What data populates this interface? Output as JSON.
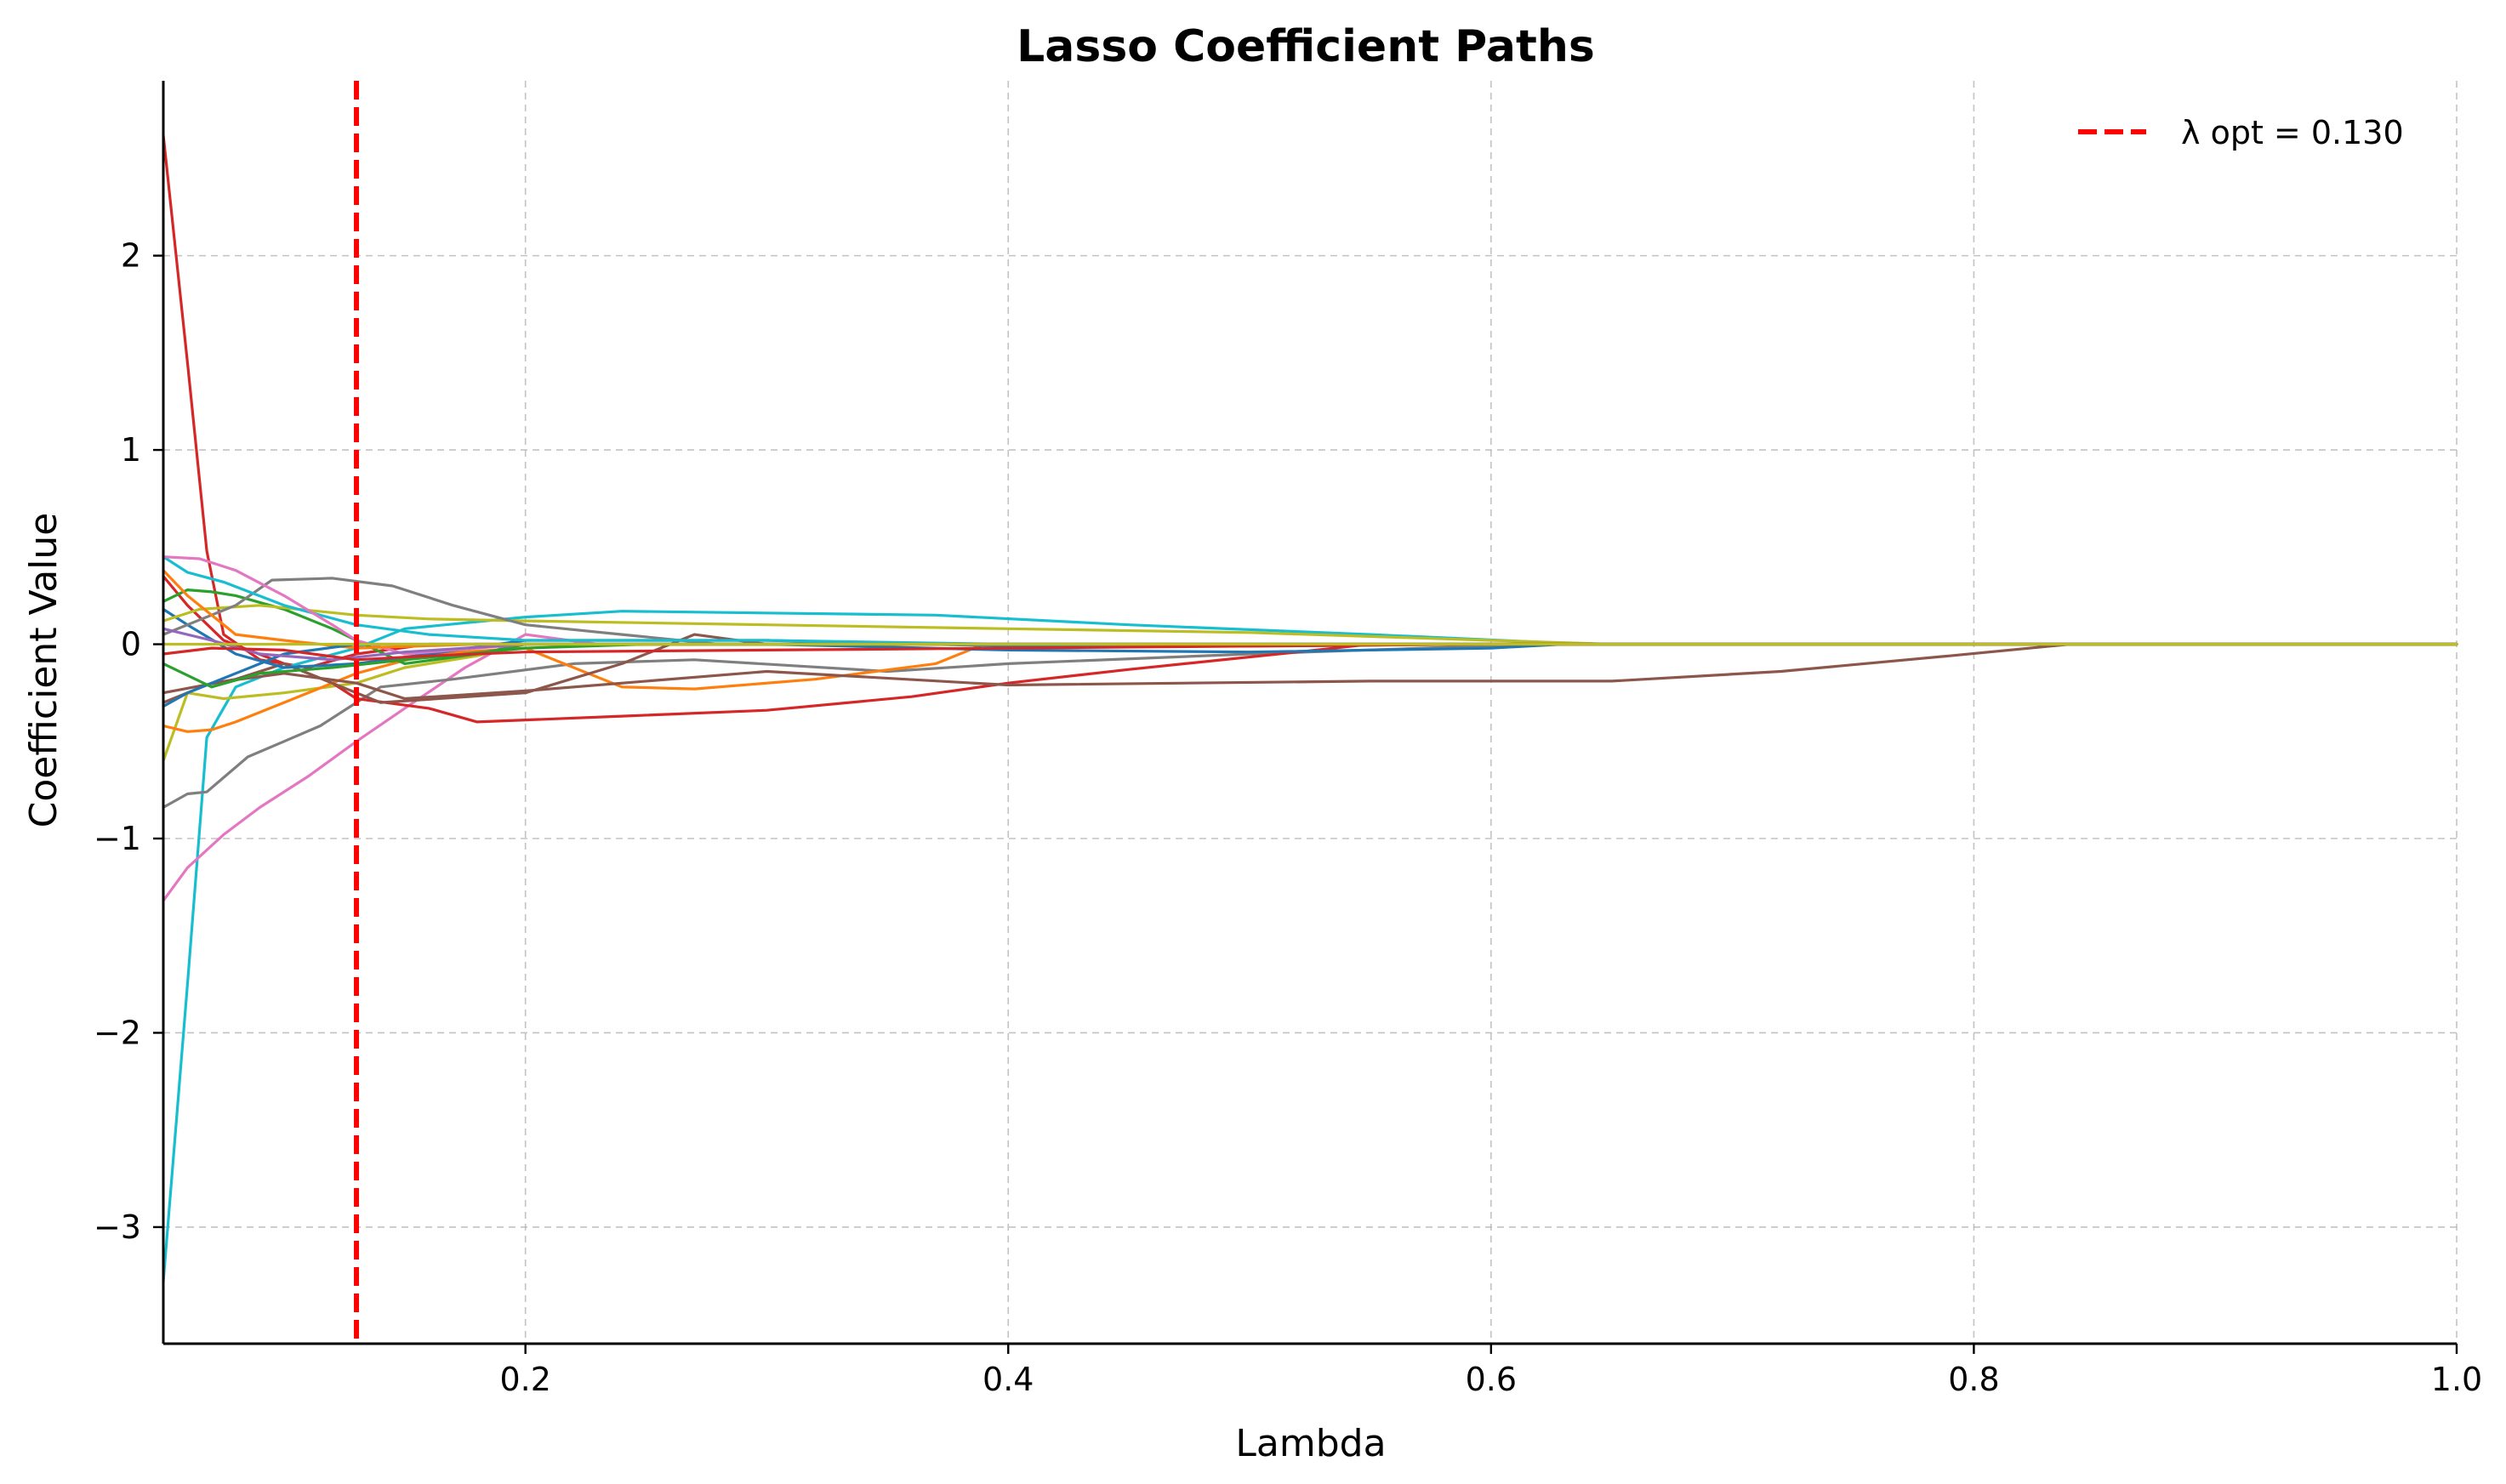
{
  "chart_data": {
    "type": "line",
    "title": "Lasso Coefficient Paths",
    "xlabel": "Lambda",
    "ylabel": "Coefficient Value",
    "xlim": [
      0.05,
      1.0
    ],
    "ylim": [
      -3.6,
      2.9
    ],
    "xticks": [
      0.2,
      0.4,
      0.6,
      0.8,
      1.0
    ],
    "xtick_labels": [
      "0.2",
      "0.4",
      "0.6",
      "0.8",
      "1.0"
    ],
    "yticks": [
      -3,
      -2,
      -1,
      0,
      1,
      2
    ],
    "ytick_labels": [
      "−3",
      "−2",
      "−1",
      "0",
      "1",
      "2"
    ],
    "grid": true,
    "legend": {
      "placement": "top-right",
      "entries": [
        {
          "label": "λ opt = 0.130",
          "color": "#ff0000",
          "style": "dashed"
        }
      ]
    },
    "vline": {
      "x": 0.13,
      "label": "λ opt = 0.130",
      "color": "#ff0000"
    },
    "series": [
      {
        "color": "#d62728",
        "points": [
          [
            0.05,
            2.62
          ],
          [
            0.06,
            1.45
          ],
          [
            0.068,
            0.48
          ],
          [
            0.075,
            0.05
          ],
          [
            0.09,
            -0.08
          ],
          [
            0.11,
            -0.12
          ],
          [
            0.13,
            -0.05
          ],
          [
            0.16,
            0.0
          ],
          [
            0.2,
            0.0
          ],
          [
            1.0,
            0.0
          ]
        ]
      },
      {
        "color": "#17becf",
        "points": [
          [
            0.05,
            -3.28
          ],
          [
            0.06,
            -1.75
          ],
          [
            0.068,
            -0.48
          ],
          [
            0.08,
            -0.22
          ],
          [
            0.1,
            -0.12
          ],
          [
            0.13,
            -0.02
          ],
          [
            0.15,
            0.08
          ],
          [
            0.2,
            0.14
          ],
          [
            0.24,
            0.17
          ],
          [
            0.37,
            0.15
          ],
          [
            0.45,
            0.1
          ],
          [
            0.55,
            0.05
          ],
          [
            0.64,
            0.0
          ],
          [
            1.0,
            0.0
          ]
        ]
      },
      {
        "color": "#e377c2",
        "points": [
          [
            0.05,
            -1.32
          ],
          [
            0.06,
            -1.15
          ],
          [
            0.075,
            -0.98
          ],
          [
            0.09,
            -0.84
          ],
          [
            0.11,
            -0.68
          ],
          [
            0.13,
            -0.5
          ],
          [
            0.15,
            -0.33
          ],
          [
            0.175,
            -0.12
          ],
          [
            0.2,
            0.05
          ],
          [
            0.23,
            0.0
          ],
          [
            1.0,
            0.0
          ]
        ]
      },
      {
        "color": "#7f7f7f",
        "points": [
          [
            0.05,
            -0.84
          ],
          [
            0.06,
            -0.77
          ],
          [
            0.068,
            -0.76
          ],
          [
            0.085,
            -0.58
          ],
          [
            0.1,
            -0.5
          ],
          [
            0.115,
            -0.42
          ],
          [
            0.13,
            -0.3
          ],
          [
            0.14,
            -0.22
          ],
          [
            0.17,
            -0.18
          ],
          [
            0.22,
            -0.1
          ],
          [
            0.27,
            -0.08
          ],
          [
            0.35,
            -0.14
          ],
          [
            0.4,
            -0.1
          ],
          [
            0.5,
            -0.05
          ],
          [
            0.62,
            0.0
          ],
          [
            1.0,
            0.0
          ]
        ]
      },
      {
        "color": "#bcbd22",
        "points": [
          [
            0.05,
            -0.6
          ],
          [
            0.06,
            -0.25
          ],
          [
            0.075,
            -0.28
          ],
          [
            0.1,
            -0.25
          ],
          [
            0.13,
            -0.2
          ],
          [
            0.15,
            -0.12
          ],
          [
            0.18,
            -0.06
          ],
          [
            0.2,
            0.0
          ],
          [
            1.0,
            0.0
          ]
        ]
      },
      {
        "color": "#ff7f0e",
        "points": [
          [
            0.05,
            -0.42
          ],
          [
            0.06,
            -0.45
          ],
          [
            0.07,
            -0.44
          ],
          [
            0.08,
            -0.4
          ],
          [
            0.1,
            -0.3
          ],
          [
            0.13,
            -0.15
          ],
          [
            0.16,
            -0.05
          ],
          [
            0.2,
            -0.02
          ],
          [
            0.22,
            -0.12
          ],
          [
            0.24,
            -0.22
          ],
          [
            0.27,
            -0.23
          ],
          [
            0.32,
            -0.18
          ],
          [
            0.37,
            -0.1
          ],
          [
            0.39,
            0.0
          ],
          [
            1.0,
            0.0
          ]
        ]
      },
      {
        "color": "#d62728",
        "points": [
          [
            0.05,
            0.35
          ],
          [
            0.06,
            0.2
          ],
          [
            0.075,
            0.02
          ],
          [
            0.1,
            -0.1
          ],
          [
            0.12,
            -0.2
          ],
          [
            0.13,
            -0.28
          ],
          [
            0.16,
            -0.33
          ],
          [
            0.18,
            -0.4
          ],
          [
            0.2,
            -0.39
          ],
          [
            0.24,
            -0.37
          ],
          [
            0.3,
            -0.34
          ],
          [
            0.36,
            -0.27
          ],
          [
            0.4,
            -0.2
          ],
          [
            0.45,
            -0.13
          ],
          [
            0.52,
            -0.04
          ],
          [
            0.55,
            0.0
          ],
          [
            1.0,
            0.0
          ]
        ]
      },
      {
        "color": "#8c564b",
        "points": [
          [
            0.05,
            -0.3
          ],
          [
            0.07,
            -0.2
          ],
          [
            0.1,
            -0.15
          ],
          [
            0.13,
            -0.2
          ],
          [
            0.15,
            -0.28
          ],
          [
            0.2,
            -0.24
          ],
          [
            0.3,
            -0.14
          ],
          [
            0.4,
            -0.21
          ],
          [
            0.55,
            -0.19
          ],
          [
            0.65,
            -0.19
          ],
          [
            0.72,
            -0.14
          ],
          [
            0.79,
            -0.06
          ],
          [
            0.84,
            0.0
          ],
          [
            1.0,
            0.0
          ]
        ]
      },
      {
        "color": "#8c564b",
        "points": [
          [
            0.05,
            -0.25
          ],
          [
            0.08,
            -0.18
          ],
          [
            0.1,
            -0.1
          ],
          [
            0.13,
            -0.25
          ],
          [
            0.14,
            -0.3
          ],
          [
            0.2,
            -0.25
          ],
          [
            0.24,
            -0.1
          ],
          [
            0.27,
            0.05
          ],
          [
            0.3,
            0.0
          ],
          [
            1.0,
            0.0
          ]
        ]
      },
      {
        "color": "#2ca02c",
        "points": [
          [
            0.05,
            0.22
          ],
          [
            0.06,
            0.28
          ],
          [
            0.07,
            0.27
          ],
          [
            0.08,
            0.25
          ],
          [
            0.1,
            0.18
          ],
          [
            0.12,
            0.08
          ],
          [
            0.13,
            0.02
          ],
          [
            0.15,
            -0.1
          ],
          [
            0.18,
            -0.05
          ],
          [
            0.2,
            0.0
          ],
          [
            1.0,
            0.0
          ]
        ]
      },
      {
        "color": "#1f77b4",
        "points": [
          [
            0.05,
            0.18
          ],
          [
            0.06,
            0.1
          ],
          [
            0.08,
            -0.05
          ],
          [
            0.1,
            -0.12
          ],
          [
            0.13,
            -0.1
          ],
          [
            0.16,
            -0.05
          ],
          [
            0.2,
            0.02
          ],
          [
            0.3,
            0.02
          ],
          [
            0.4,
            -0.01
          ],
          [
            0.5,
            -0.01
          ],
          [
            0.6,
            0.0
          ],
          [
            1.0,
            0.0
          ]
        ]
      },
      {
        "color": "#bcbd22",
        "points": [
          [
            0.05,
            0.12
          ],
          [
            0.065,
            0.18
          ],
          [
            0.09,
            0.2
          ],
          [
            0.13,
            0.15
          ],
          [
            0.16,
            0.13
          ],
          [
            0.2,
            0.12
          ],
          [
            0.3,
            0.1
          ],
          [
            0.4,
            0.08
          ],
          [
            0.5,
            0.06
          ],
          [
            0.6,
            0.02
          ],
          [
            0.65,
            0.0
          ],
          [
            1.0,
            0.0
          ]
        ]
      },
      {
        "color": "#7f7f7f",
        "points": [
          [
            0.05,
            0.05
          ],
          [
            0.08,
            0.2
          ],
          [
            0.095,
            0.33
          ],
          [
            0.12,
            0.34
          ],
          [
            0.145,
            0.3
          ],
          [
            0.17,
            0.2
          ],
          [
            0.2,
            0.1
          ],
          [
            0.24,
            0.05
          ],
          [
            0.28,
            0.0
          ],
          [
            1.0,
            0.0
          ]
        ]
      },
      {
        "color": "#17becf",
        "points": [
          [
            0.05,
            0.45
          ],
          [
            0.06,
            0.37
          ],
          [
            0.075,
            0.32
          ],
          [
            0.1,
            0.2
          ],
          [
            0.13,
            0.1
          ],
          [
            0.16,
            0.05
          ],
          [
            0.2,
            0.02
          ],
          [
            0.3,
            0.02
          ],
          [
            0.4,
            0.0
          ],
          [
            1.0,
            0.0
          ]
        ]
      },
      {
        "color": "#e377c2",
        "points": [
          [
            0.05,
            0.45
          ],
          [
            0.065,
            0.44
          ],
          [
            0.08,
            0.38
          ],
          [
            0.1,
            0.25
          ],
          [
            0.12,
            0.1
          ],
          [
            0.13,
            0.02
          ],
          [
            0.15,
            -0.05
          ],
          [
            0.2,
            0.0
          ],
          [
            1.0,
            0.0
          ]
        ]
      },
      {
        "color": "#ff7f0e",
        "points": [
          [
            0.05,
            0.38
          ],
          [
            0.06,
            0.25
          ],
          [
            0.08,
            0.05
          ],
          [
            0.1,
            0.02
          ],
          [
            0.13,
            -0.02
          ],
          [
            0.18,
            0.0
          ],
          [
            1.0,
            0.0
          ]
        ]
      },
      {
        "color": "#1f77b4",
        "points": [
          [
            0.05,
            -0.32
          ],
          [
            0.06,
            -0.25
          ],
          [
            0.08,
            -0.15
          ],
          [
            0.1,
            -0.05
          ],
          [
            0.13,
            0.0
          ],
          [
            0.2,
            0.0
          ],
          [
            0.3,
            0.0
          ],
          [
            0.4,
            -0.03
          ],
          [
            0.5,
            -0.04
          ],
          [
            0.6,
            -0.02
          ],
          [
            0.63,
            0.0
          ],
          [
            1.0,
            0.0
          ]
        ]
      },
      {
        "color": "#9467bd",
        "points": [
          [
            0.05,
            0.08
          ],
          [
            0.07,
            0.02
          ],
          [
            0.09,
            -0.05
          ],
          [
            0.12,
            -0.08
          ],
          [
            0.15,
            -0.04
          ],
          [
            0.2,
            0.0
          ],
          [
            1.0,
            0.0
          ]
        ]
      },
      {
        "color": "#2ca02c",
        "points": [
          [
            0.05,
            -0.1
          ],
          [
            0.07,
            -0.22
          ],
          [
            0.09,
            -0.15
          ],
          [
            0.12,
            -0.12
          ],
          [
            0.15,
            -0.08
          ],
          [
            0.2,
            -0.02
          ],
          [
            0.25,
            0.0
          ],
          [
            1.0,
            0.0
          ]
        ]
      },
      {
        "color": "#d62728",
        "points": [
          [
            0.05,
            -0.05
          ],
          [
            0.07,
            -0.02
          ],
          [
            0.1,
            -0.03
          ],
          [
            0.13,
            -0.08
          ],
          [
            0.16,
            -0.06
          ],
          [
            0.2,
            -0.04
          ],
          [
            0.3,
            -0.03
          ],
          [
            0.4,
            -0.02
          ],
          [
            0.5,
            -0.01
          ],
          [
            0.6,
            0.0
          ],
          [
            1.0,
            0.0
          ]
        ]
      },
      {
        "color": "#bcbd22",
        "points": [
          [
            0.05,
            0.0
          ],
          [
            1.0,
            0.0
          ]
        ]
      }
    ]
  }
}
